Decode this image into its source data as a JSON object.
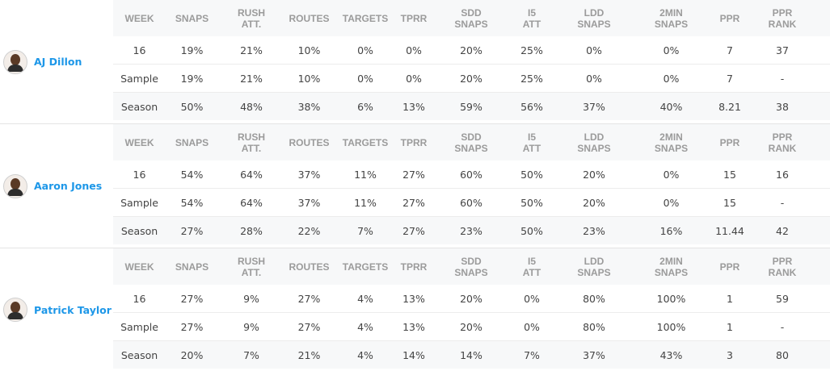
{
  "headers": [
    "WEEK",
    "SNAPS",
    "RUSH ATT.",
    "ROUTES",
    "TARGETS",
    "TPRR",
    "SDD SNAPS",
    "I5 ATT",
    "LDD SNAPS",
    "2MIN SNAPS",
    "PPR",
    "PPR RANK"
  ],
  "headers_lines": [
    [
      "WEEK"
    ],
    [
      "SNAPS"
    ],
    [
      "RUSH",
      "ATT."
    ],
    [
      "ROUTES"
    ],
    [
      "TARGETS"
    ],
    [
      "TPRR"
    ],
    [
      "SDD",
      "SNAPS"
    ],
    [
      "I5",
      "ATT"
    ],
    [
      "LDD",
      "SNAPS"
    ],
    [
      "2MIN",
      "SNAPS"
    ],
    [
      "PPR"
    ],
    [
      "PPR",
      "RANK"
    ]
  ],
  "players": [
    {
      "name": "AJ Dillon",
      "avatar_icon": "player-headshot-icon",
      "rows": [
        [
          "16",
          "19%",
          "21%",
          "10%",
          "0%",
          "0%",
          "20%",
          "25%",
          "0%",
          "0%",
          "7",
          "37"
        ],
        [
          "Sample",
          "19%",
          "21%",
          "10%",
          "0%",
          "0%",
          "20%",
          "25%",
          "0%",
          "0%",
          "7",
          "-"
        ],
        [
          "Season",
          "50%",
          "48%",
          "38%",
          "6%",
          "13%",
          "59%",
          "56%",
          "37%",
          "40%",
          "8.21",
          "38"
        ]
      ]
    },
    {
      "name": "Aaron Jones",
      "avatar_icon": "player-headshot-icon",
      "rows": [
        [
          "16",
          "54%",
          "64%",
          "37%",
          "11%",
          "27%",
          "60%",
          "50%",
          "20%",
          "0%",
          "15",
          "16"
        ],
        [
          "Sample",
          "54%",
          "64%",
          "37%",
          "11%",
          "27%",
          "60%",
          "50%",
          "20%",
          "0%",
          "15",
          "-"
        ],
        [
          "Season",
          "27%",
          "28%",
          "22%",
          "7%",
          "27%",
          "23%",
          "50%",
          "23%",
          "16%",
          "11.44",
          "42"
        ]
      ]
    },
    {
      "name": "Patrick Taylor",
      "avatar_icon": "player-headshot-icon",
      "rows": [
        [
          "16",
          "27%",
          "9%",
          "27%",
          "4%",
          "13%",
          "20%",
          "0%",
          "80%",
          "100%",
          "1",
          "59"
        ],
        [
          "Sample",
          "27%",
          "9%",
          "27%",
          "4%",
          "13%",
          "20%",
          "0%",
          "80%",
          "100%",
          "1",
          "-"
        ],
        [
          "Season",
          "20%",
          "7%",
          "21%",
          "4%",
          "14%",
          "14%",
          "7%",
          "37%",
          "43%",
          "3",
          "80"
        ]
      ]
    }
  ],
  "colors": {
    "name_link": "#1d97e8",
    "header_text": "#9b9b9b",
    "row_alt_bg": "#f7f8f9"
  }
}
